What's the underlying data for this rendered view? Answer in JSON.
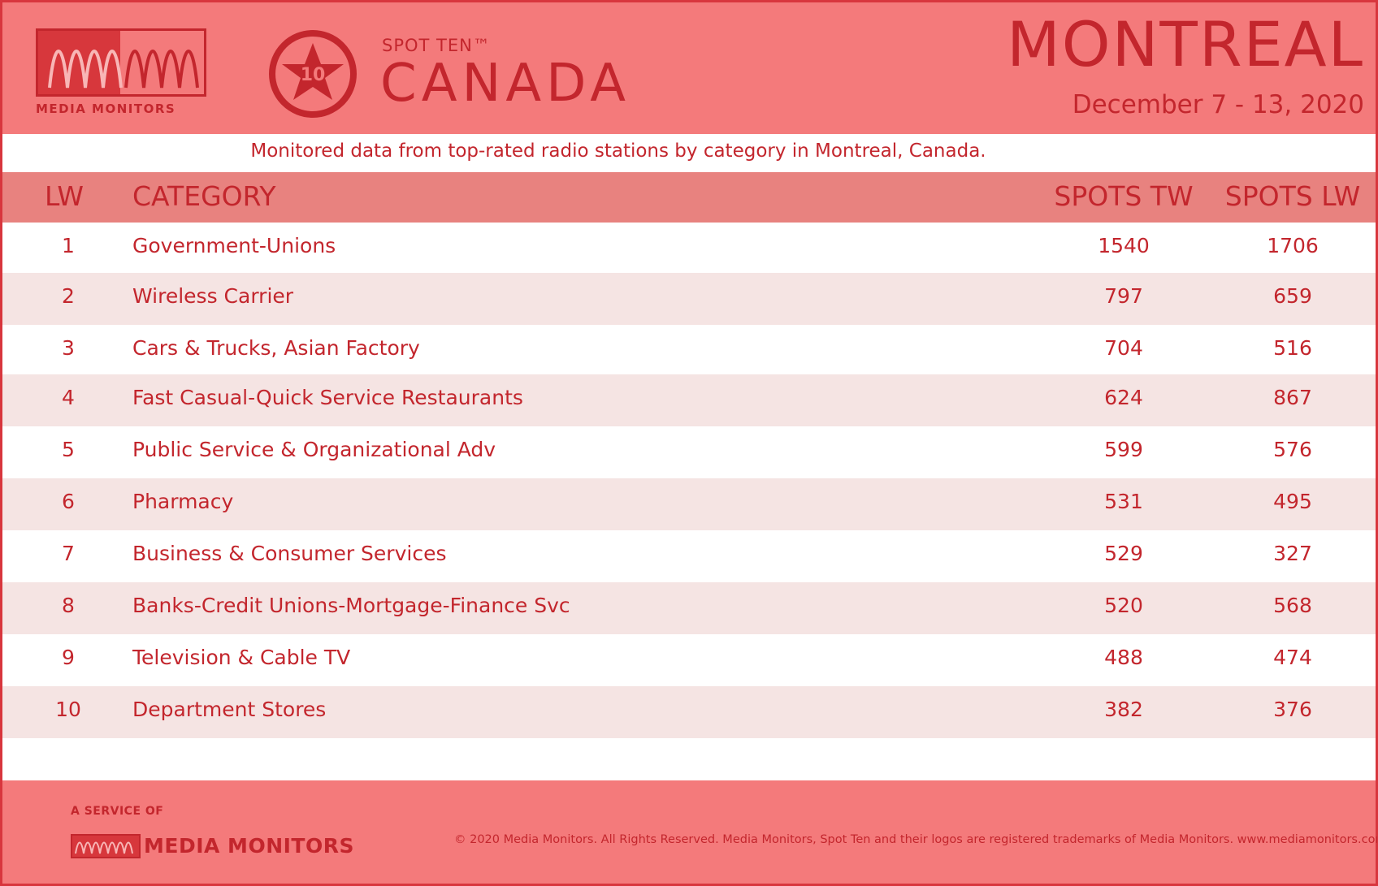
{
  "header": {
    "logo_text": "MEDIA MONITORS",
    "badge_number": "10",
    "brand_small": "SPOT TEN™",
    "brand_big": "CANADA",
    "city": "MONTREAL",
    "dates": "December 7 - 13, 2020"
  },
  "subtitle": "Monitored data from top-rated radio stations by category in Montreal, Canada.",
  "table": {
    "columns": {
      "lw": "LW",
      "category": "CATEGORY",
      "spots_tw": "SPOTS TW",
      "spots_lw": "SPOTS LW"
    },
    "rows": [
      {
        "rank": "1",
        "category": "Government-Unions",
        "spots_tw": "1540",
        "spots_lw": "1706"
      },
      {
        "rank": "2",
        "category": "Wireless Carrier",
        "spots_tw": "797",
        "spots_lw": "659"
      },
      {
        "rank": "3",
        "category": "Cars & Trucks, Asian Factory",
        "spots_tw": "704",
        "spots_lw": "516"
      },
      {
        "rank": "4",
        "category": "Fast Casual-Quick Service Restaurants",
        "spots_tw": "624",
        "spots_lw": "867"
      },
      {
        "rank": "5",
        "category": "Public Service & Organizational Adv",
        "spots_tw": "599",
        "spots_lw": "576"
      },
      {
        "rank": "6",
        "category": "Pharmacy",
        "spots_tw": "531",
        "spots_lw": "495"
      },
      {
        "rank": "7",
        "category": "Business & Consumer Services",
        "spots_tw": "529",
        "spots_lw": "327"
      },
      {
        "rank": "8",
        "category": "Banks-Credit Unions-Mortgage-Finance Svc",
        "spots_tw": "520",
        "spots_lw": "568"
      },
      {
        "rank": "9",
        "category": "Television & Cable TV",
        "spots_tw": "488",
        "spots_lw": "474"
      },
      {
        "rank": "10",
        "category": "Department Stores",
        "spots_tw": "382",
        "spots_lw": "376"
      }
    ]
  },
  "footer": {
    "service_label": "A SERVICE OF",
    "brand": "MEDIA MONITORS",
    "copyright": "© 2020 Media Monitors. All Rights Reserved. Media Monitors, Spot Ten and their logos are registered trademarks of Media Monitors. www.mediamonitors.com"
  },
  "colors": {
    "header_bg": "#f47a7b",
    "text_red": "#c3262d",
    "alt_row": "#f5e4e3",
    "col_head_bg": "#e8827f"
  }
}
